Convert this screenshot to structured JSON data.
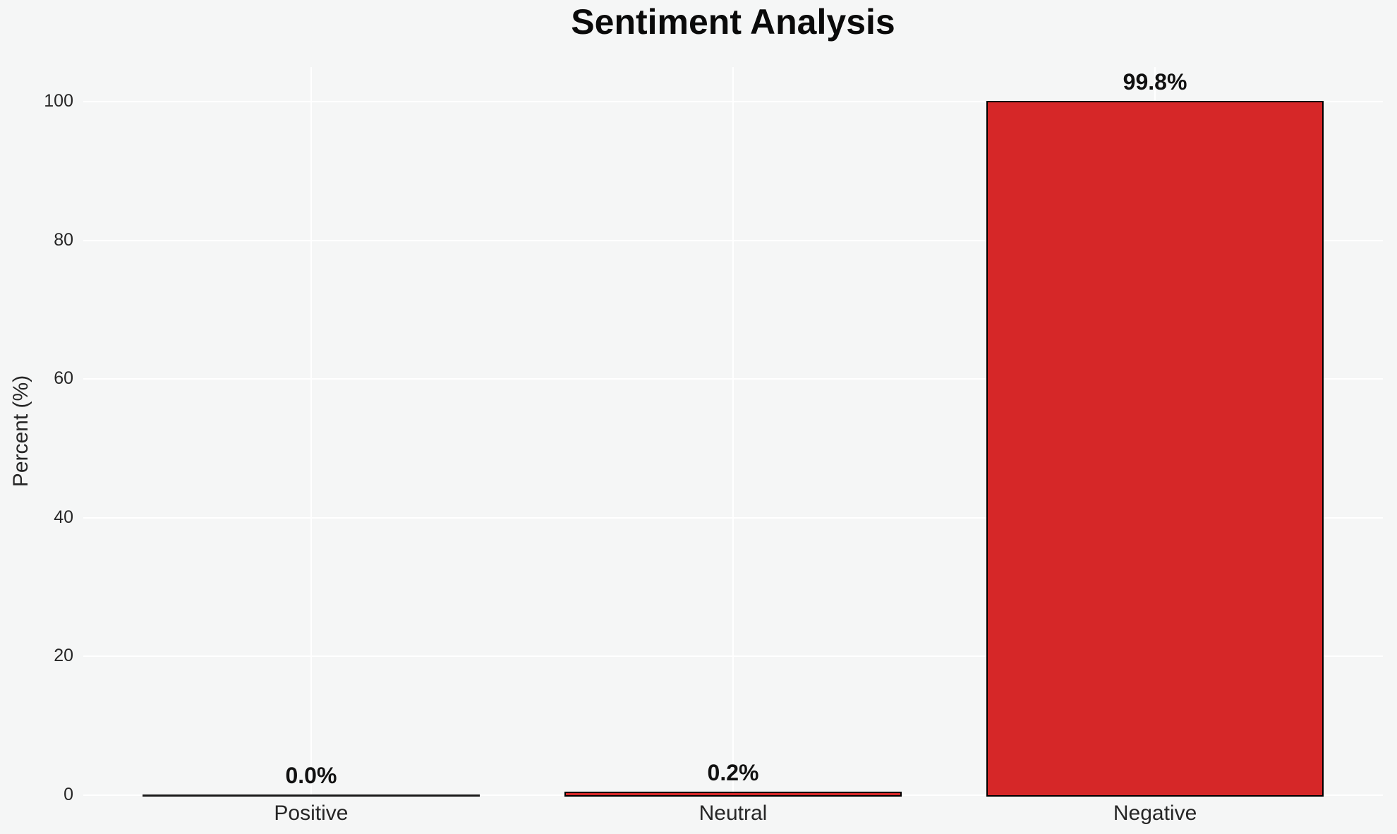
{
  "page": {
    "title": "Sentiment Analysis"
  },
  "chart_data": {
    "type": "bar",
    "title": "Sentiment Analysis",
    "xlabel": "",
    "ylabel": "Percent (%)",
    "categories": [
      "Positive",
      "Neutral",
      "Negative"
    ],
    "values": [
      0.0,
      0.2,
      99.8
    ],
    "value_labels": [
      "0.0%",
      "0.2%",
      "99.8%"
    ],
    "yticks": [
      0,
      20,
      40,
      60,
      80,
      100
    ],
    "ylim": [
      0,
      105
    ],
    "grid": true,
    "grid_axes": "both",
    "legend": "none",
    "colors": {
      "bar_fill": "#d62728",
      "bar_edge": "#000000",
      "background": "#f5f6f6",
      "gridline": "#ffffff",
      "tick_text": "#262626",
      "title_text": "#0a0a0a",
      "value_label_text": "#111111"
    }
  }
}
